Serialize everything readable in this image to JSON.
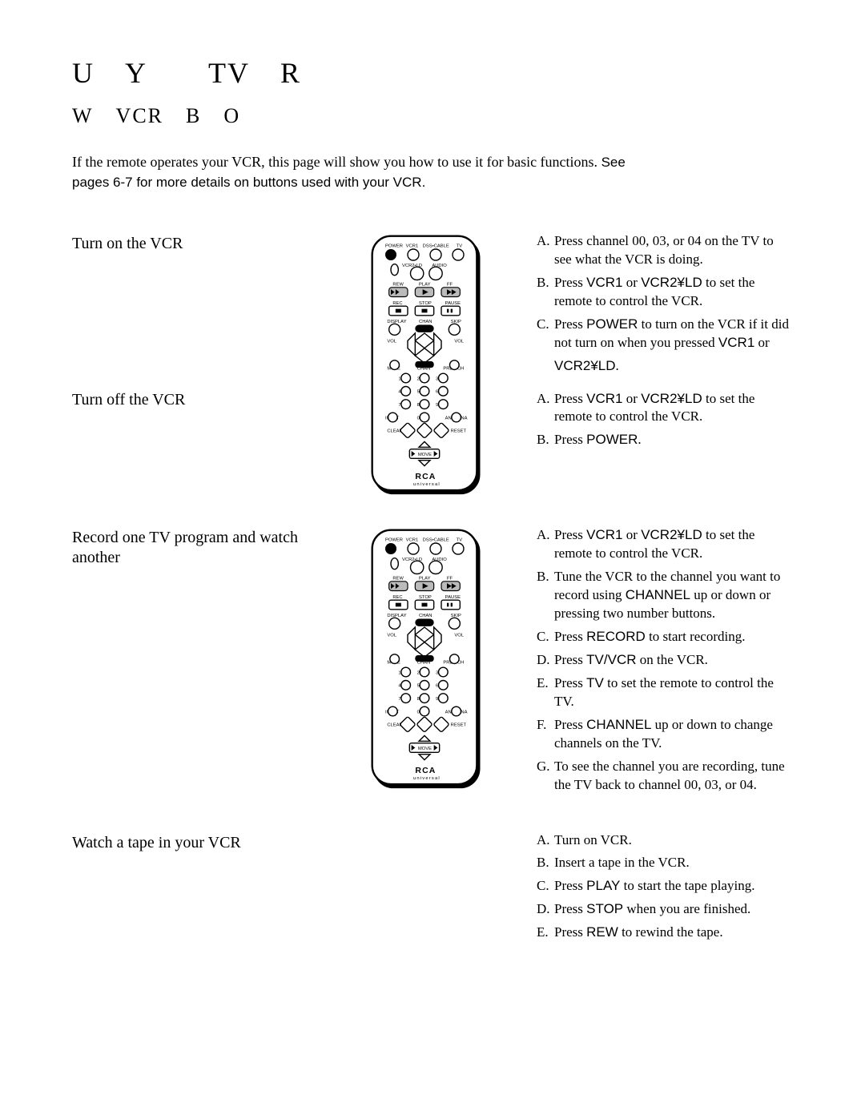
{
  "title": "U Y  TV R",
  "subtitle": "W VCR B O",
  "intro_serif": "If the remote operates your VCR, this page will show you how to use it for basic functions. ",
  "intro_sans": "See pages 6-7 for more details on buttons used with your VCR.",
  "tasks": {
    "turn_on": {
      "label": "Turn on the VCR",
      "steps": [
        {
          "l": "A.",
          "pre": "Press channel 00, 03, or 04 on the TV to see what the VCR is doing."
        },
        {
          "l": "B.",
          "pre": "Press ",
          "sans": "VCR1",
          "mid": " or ",
          "sans2": "VCR2¥LD",
          "post": " to set the remote to control the VCR."
        },
        {
          "l": "C.",
          "pre": "Press ",
          "sans": "POWER",
          "mid": " to turn on the VCR if it did not turn on when you pressed ",
          "sans2": "VCR1",
          "post": " or "
        },
        {
          "l": "",
          "pre": "",
          "sans": "VCR2¥LD",
          "mid": ".",
          "sans2": "",
          "post": ""
        }
      ]
    },
    "turn_off": {
      "label": "Turn off the VCR",
      "steps": [
        {
          "l": "A.",
          "pre": "Press ",
          "sans": "VCR1",
          "mid": " or ",
          "sans2": "VCR2¥LD",
          "post": " to set the remote to control the VCR."
        },
        {
          "l": "B.",
          "pre": "Press ",
          "sans": "POWER",
          "mid": ".",
          "sans2": "",
          "post": ""
        }
      ]
    },
    "record": {
      "label": "Record one TV program and watch another",
      "steps": [
        {
          "l": "A.",
          "pre": "Press ",
          "sans": "VCR1",
          "mid": " or ",
          "sans2": "VCR2¥LD",
          "post": " to set the remote to control the VCR."
        },
        {
          "l": "B.",
          "pre": "Tune the VCR to the channel you want to record using ",
          "sans": "CHANNEL",
          "mid": " up or down or pressing two number buttons.",
          "sans2": "",
          "post": ""
        },
        {
          "l": "C.",
          "pre": "Press ",
          "sans": "RECORD",
          "mid": " to start recording.",
          "sans2": "",
          "post": ""
        },
        {
          "l": "D.",
          "pre": "Press ",
          "sans": "TV/VCR",
          "mid": " on the VCR.",
          "sans2": "",
          "post": ""
        },
        {
          "l": "E.",
          "pre": "Press ",
          "sans": "TV",
          "mid": " to set the remote to control the TV.",
          "sans2": "",
          "post": ""
        },
        {
          "l": "F.",
          "pre": "Press ",
          "sans": "CHANNEL",
          "mid": " up or down to change channels on the TV.",
          "sans2": "",
          "post": ""
        },
        {
          "l": "G.",
          "pre": "To see the channel you are recording, tune the TV back to channel 00, 03, or 04."
        }
      ]
    },
    "watch": {
      "label": "Watch a tape in your VCR",
      "steps": [
        {
          "l": "A.",
          "pre": "Turn on VCR."
        },
        {
          "l": "B.",
          "pre": "Insert a tape in the VCR."
        },
        {
          "l": "C.",
          "pre": "Press ",
          "sans": "PLAY",
          "mid": " to start the tape playing.",
          "sans2": "",
          "post": ""
        },
        {
          "l": "D.",
          "pre": "Press ",
          "sans": "STOP",
          "mid": " when you are finished.",
          "sans2": "",
          "post": ""
        },
        {
          "l": "E.",
          "pre": "Press ",
          "sans": "REW",
          "mid": " to rewind the tape.",
          "sans2": "",
          "post": ""
        }
      ]
    }
  },
  "remote": {
    "top_labels": [
      "POWER",
      "VCR1",
      "DSS•CABLE",
      "TV"
    ],
    "row2_labels": [
      "VCR2•LD",
      "AUDIO"
    ],
    "transport_top": [
      "REW",
      "PLAY",
      "FF"
    ],
    "transport_bot": [
      "REC",
      "STOP",
      "PAUSE"
    ],
    "row_below": [
      "DISPLAY",
      "CHAN",
      "SKIP"
    ],
    "side_labels": [
      "VOL",
      "VOL"
    ],
    "mid_labels": [
      "MUTE",
      "CHAN",
      "PREV CH"
    ],
    "keypad": [
      "1",
      "2",
      "3",
      "4",
      "5",
      "6",
      "7",
      "8",
      "9",
      "0"
    ],
    "bottom_row": [
      "INPUT",
      "",
      "ANTENNA"
    ],
    "clear_reset": [
      "CLEAR",
      "RESET"
    ],
    "move": "MOVE",
    "brand": "RCA",
    "brand_sub": "universal"
  }
}
